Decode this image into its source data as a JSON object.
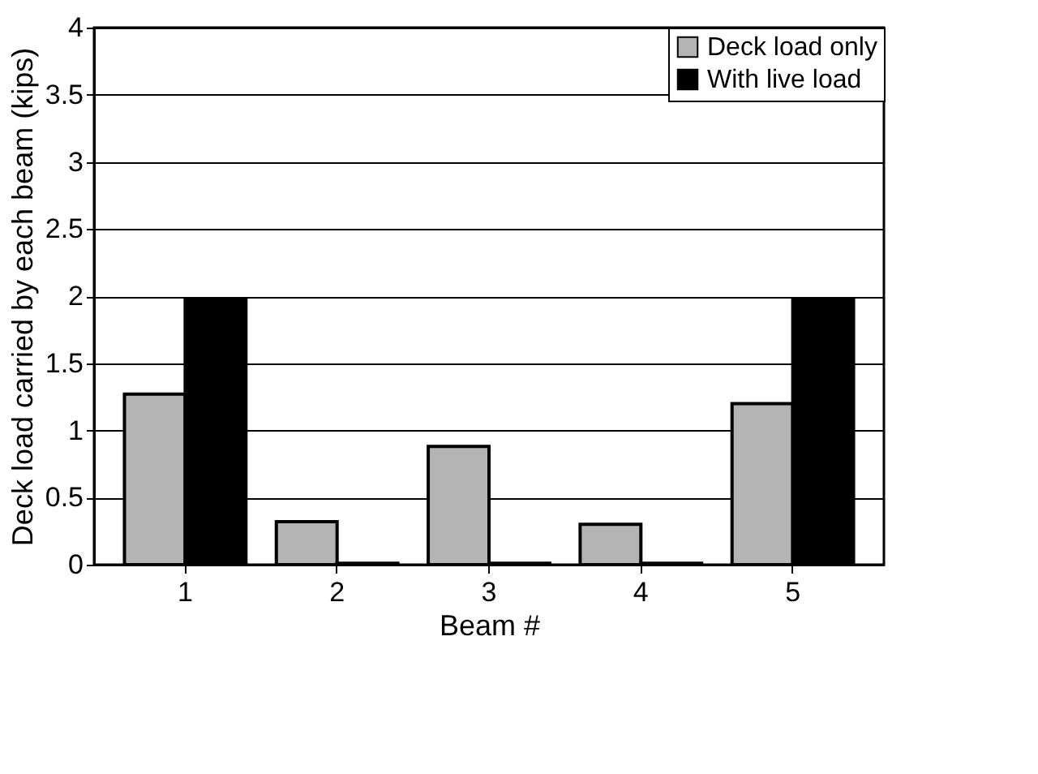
{
  "chart_data": {
    "type": "bar",
    "xlabel": "Beam #",
    "ylabel": "Deck load carried by each beam (kips)",
    "categories": [
      "1",
      "2",
      "3",
      "4",
      "5"
    ],
    "series": [
      {
        "name": "Deck load only",
        "color": "#b4b4b4",
        "values": [
          1.27,
          0.32,
          0.88,
          0.3,
          1.2
        ]
      },
      {
        "name": "With live load",
        "color": "#000000",
        "values": [
          1.97,
          0.01,
          0.01,
          0.01,
          1.97
        ]
      }
    ],
    "ylim": [
      0,
      4
    ],
    "yticks": [
      0,
      0.5,
      1,
      1.5,
      2,
      2.5,
      3,
      3.5,
      4
    ],
    "grid": "y",
    "legend": "top right"
  }
}
